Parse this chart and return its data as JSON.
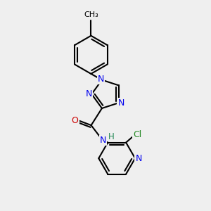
{
  "bg_color": "#efefef",
  "bond_color": "#000000",
  "bond_width": 1.5,
  "N_color": "#0000ee",
  "O_color": "#cc0000",
  "Cl_color": "#228822",
  "C_color": "#000000",
  "H_color": "#228855",
  "figsize": [
    3.0,
    3.0
  ],
  "dpi": 100,
  "xlim": [
    0,
    10
  ],
  "ylim": [
    0,
    10
  ]
}
